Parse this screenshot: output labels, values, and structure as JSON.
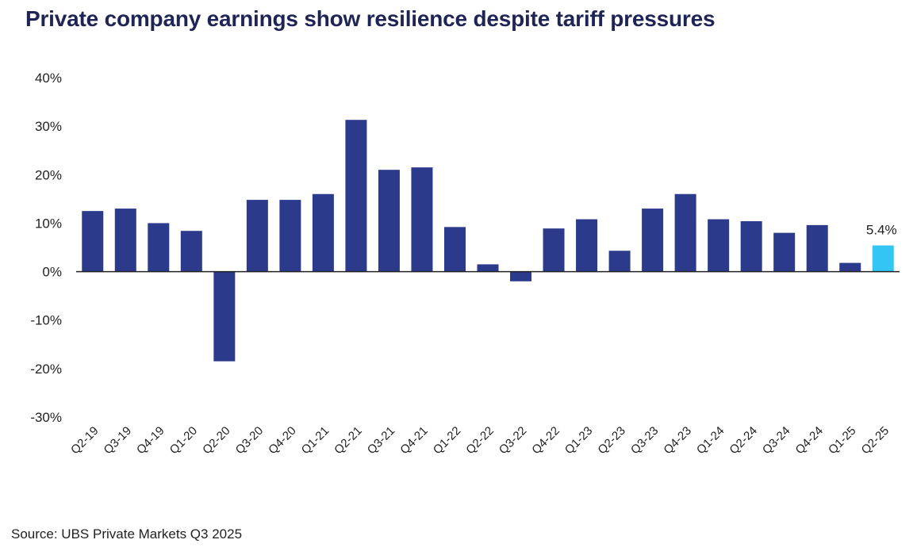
{
  "title": "Private company earnings show resilience despite tariff pressures",
  "source": "Source: UBS Private Markets Q3 2025",
  "colors": {
    "bar": "#2c3a8c",
    "highlight": "#33c5f3",
    "axis": "#222222",
    "title": "#1f2457"
  },
  "chart_data": {
    "type": "bar",
    "title": "Private company earnings show resilience despite tariff pressures",
    "xlabel": "",
    "ylabel": "",
    "ylim": [
      -30,
      40
    ],
    "yticks": [
      "40%",
      "30%",
      "20%",
      "10%",
      "0%",
      "-10%",
      "-20%",
      "-30%"
    ],
    "ytick_values": [
      40,
      30,
      20,
      10,
      0,
      -10,
      -20,
      -30
    ],
    "grid": false,
    "categories": [
      "Q2-19",
      "Q3-19",
      "Q4-19",
      "Q1-20",
      "Q2-20",
      "Q3-20",
      "Q4-20",
      "Q1-21",
      "Q2-21",
      "Q3-21",
      "Q4-21",
      "Q1-22",
      "Q2-22",
      "Q3-22",
      "Q4-22",
      "Q1-23",
      "Q2-23",
      "Q3-23",
      "Q4-23",
      "Q1-24",
      "Q2-24",
      "Q3-24",
      "Q4-24",
      "Q1-25",
      "Q2-25"
    ],
    "values": [
      12.5,
      13.0,
      10.0,
      8.4,
      -18.5,
      14.8,
      14.8,
      16.0,
      31.3,
      21.0,
      21.5,
      9.2,
      1.5,
      -2.0,
      8.9,
      10.8,
      4.3,
      13.0,
      16.0,
      10.8,
      10.4,
      8.0,
      9.6,
      1.8,
      5.4
    ],
    "highlight_index": 24,
    "data_labels": [
      {
        "category": "Q2-25",
        "text": "5.4%"
      }
    ]
  }
}
